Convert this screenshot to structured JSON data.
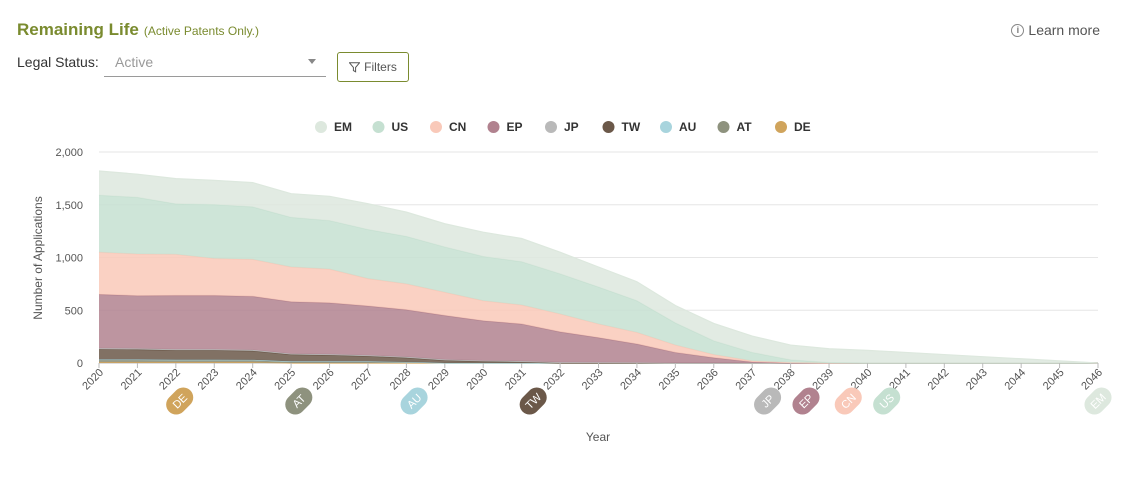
{
  "header": {
    "title": "Remaining Life",
    "subtitle": "(Active Patents Only.)",
    "learn_more": "Learn more"
  },
  "filters": {
    "legal_status_label": "Legal Status:",
    "legal_status_value": "Active",
    "filters_button": "Filters"
  },
  "icons": {
    "info": "info-circle-icon",
    "filter": "funnel-icon",
    "dropdown": "caret-down-icon"
  },
  "chart_data": {
    "type": "area",
    "stacked": true,
    "xlabel": "Year",
    "ylabel": "Number of Applications",
    "ylim": [
      0,
      2000
    ],
    "yticks": [
      0,
      500,
      1000,
      1500,
      2000
    ],
    "ytick_labels": [
      "0",
      "500",
      "1,000",
      "1,500",
      "2,000"
    ],
    "grid": true,
    "legend_position": "top-center",
    "x": [
      2020,
      2021,
      2022,
      2023,
      2024,
      2025,
      2026,
      2027,
      2028,
      2029,
      2030,
      2031,
      2032,
      2033,
      2034,
      2035,
      2036,
      2037,
      2038,
      2039,
      2040,
      2041,
      2042,
      2043,
      2044,
      2045,
      2046
    ],
    "series": [
      {
        "name": "DE",
        "color": "#d0a45c",
        "values": [
          8,
          8,
          8,
          8,
          8,
          0,
          0,
          0,
          0,
          0,
          0,
          0,
          0,
          0,
          0,
          0,
          0,
          0,
          0,
          0,
          0,
          0,
          0,
          0,
          0,
          0,
          0
        ]
      },
      {
        "name": "AT",
        "color": "#8e927e",
        "values": [
          20,
          20,
          18,
          18,
          17,
          10,
          10,
          10,
          10,
          0,
          0,
          0,
          0,
          0,
          0,
          0,
          0,
          0,
          0,
          0,
          0,
          0,
          0,
          0,
          0,
          0,
          0
        ]
      },
      {
        "name": "AU",
        "color": "#a8d4dd",
        "values": [
          5,
          5,
          5,
          5,
          5,
          5,
          5,
          5,
          0,
          0,
          0,
          0,
          0,
          0,
          0,
          0,
          0,
          0,
          0,
          0,
          0,
          0,
          0,
          0,
          0,
          0,
          0
        ]
      },
      {
        "name": "TW",
        "color": "#6b5849",
        "values": [
          97,
          95,
          90,
          90,
          85,
          65,
          60,
          50,
          40,
          25,
          15,
          10,
          0,
          0,
          0,
          0,
          0,
          0,
          0,
          0,
          0,
          0,
          0,
          0,
          0,
          0,
          0
        ]
      },
      {
        "name": "JP",
        "color": "#b9b9b9",
        "values": [
          10,
          10,
          9,
          9,
          9,
          8,
          8,
          8,
          8,
          8,
          8,
          8,
          7,
          6,
          5,
          0,
          0,
          0,
          0,
          0,
          0,
          0,
          0,
          0,
          0,
          0,
          0
        ]
      },
      {
        "name": "EP",
        "color": "#b1828f",
        "values": [
          510,
          500,
          510,
          510,
          508,
          492,
          487,
          467,
          447,
          417,
          377,
          352,
          288,
          234,
          175,
          100,
          50,
          10,
          0,
          0,
          0,
          0,
          0,
          0,
          0,
          0,
          0
        ]
      },
      {
        "name": "CN",
        "color": "#f9c9b9",
        "values": [
          400,
          395,
          390,
          350,
          350,
          330,
          320,
          260,
          245,
          220,
          190,
          180,
          170,
          130,
          110,
          70,
          30,
          10,
          5,
          0,
          0,
          0,
          0,
          0,
          0,
          0,
          0
        ]
      },
      {
        "name": "US",
        "color": "#c5e0d1",
        "values": [
          540,
          537,
          478,
          511,
          498,
          470,
          460,
          465,
          450,
          430,
          420,
          410,
          380,
          350,
          300,
          210,
          130,
          80,
          25,
          5,
          0,
          0,
          0,
          0,
          0,
          0,
          0
        ]
      },
      {
        "name": "EM",
        "color": "#dde8de",
        "values": [
          230,
          220,
          240,
          230,
          230,
          225,
          230,
          245,
          230,
          220,
          230,
          220,
          205,
          190,
          180,
          165,
          165,
          155,
          140,
          130,
          120,
          100,
          80,
          60,
          40,
          20,
          0
        ]
      }
    ],
    "legend_order": [
      "EM",
      "US",
      "CN",
      "EP",
      "JP",
      "TW",
      "AU",
      "AT",
      "DE"
    ],
    "expiry_markers": [
      {
        "label": "DE",
        "x": 2022.1,
        "color": "#d0a45c"
      },
      {
        "label": "AT",
        "x": 2025.2,
        "color": "#8e927e"
      },
      {
        "label": "AU",
        "x": 2028.2,
        "color": "#a8d4dd"
      },
      {
        "label": "TW",
        "x": 2031.3,
        "color": "#6b5849"
      },
      {
        "label": "JP",
        "x": 2037.4,
        "color": "#b9b9b9"
      },
      {
        "label": "EP",
        "x": 2038.4,
        "color": "#b1828f"
      },
      {
        "label": "CN",
        "x": 2039.5,
        "color": "#f9c9b9"
      },
      {
        "label": "US",
        "x": 2040.5,
        "color": "#c5e0d1"
      },
      {
        "label": "EM",
        "x": 2046.0,
        "color": "#dde8de"
      }
    ]
  }
}
